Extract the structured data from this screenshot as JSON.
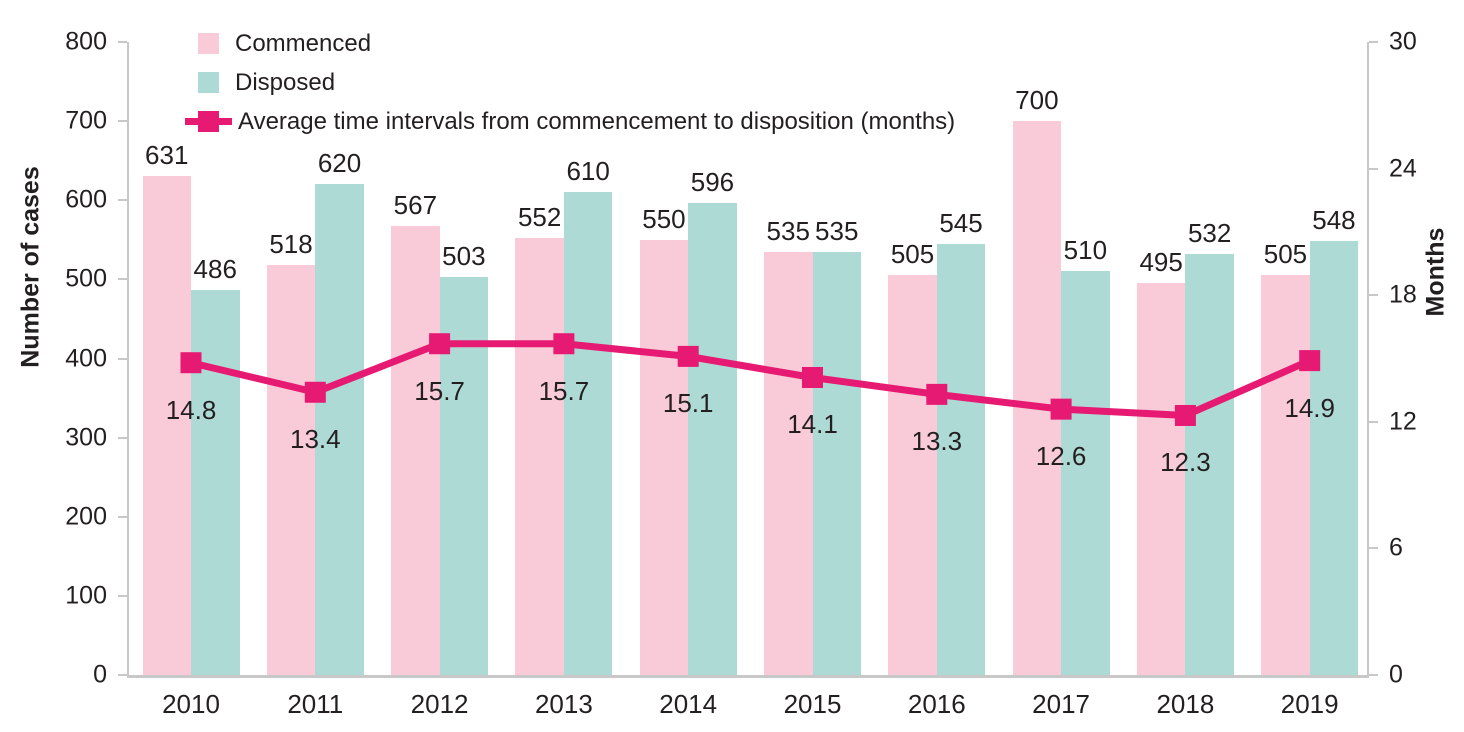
{
  "chart_data": {
    "type": "bar",
    "subtype": "grouped-bars-with-line-overlay",
    "title": "",
    "categories": [
      "2010",
      "2011",
      "2012",
      "2013",
      "2014",
      "2015",
      "2016",
      "2017",
      "2018",
      "2019"
    ],
    "series": [
      {
        "name": "Commenced",
        "type": "bar",
        "axis": "left",
        "values": [
          631,
          518,
          567,
          552,
          550,
          535,
          505,
          700,
          495,
          505
        ]
      },
      {
        "name": "Disposed",
        "type": "bar",
        "axis": "left",
        "values": [
          486,
          620,
          503,
          610,
          596,
          535,
          545,
          510,
          532,
          548
        ]
      },
      {
        "name": "Average time intervals from commencement to disposition (months)",
        "type": "line",
        "axis": "right",
        "values": [
          14.8,
          13.4,
          15.7,
          15.7,
          15.1,
          14.1,
          13.3,
          12.6,
          12.3,
          14.9
        ]
      }
    ],
    "left_axis": {
      "label": "Number of cases",
      "min": 0,
      "max": 800,
      "tick_step": 100
    },
    "right_axis": {
      "label": "Months",
      "min": 0,
      "max": 30,
      "tick_step": 6
    },
    "legend_position": "top-left",
    "grid": false,
    "data_labels": true,
    "colors": {
      "commenced_bar": "#f9cbd8",
      "disposed_bar": "#aedad6",
      "line": "#e61a72",
      "text": "#231f20",
      "axis": "#c8c8c8"
    }
  }
}
